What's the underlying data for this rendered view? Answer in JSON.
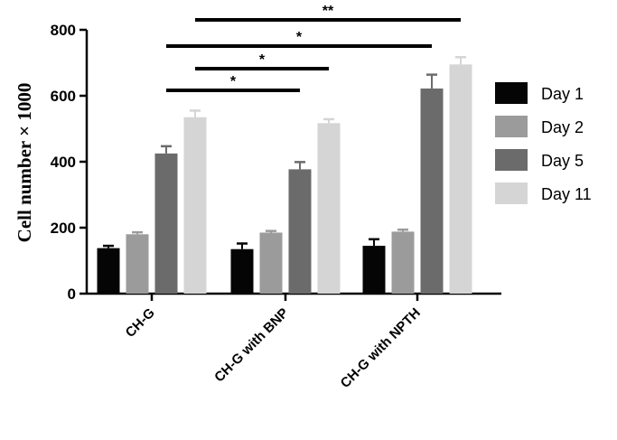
{
  "chart_data": {
    "type": "bar",
    "categories": [
      "CH-G",
      "CH-G with BNP",
      "CH-G with NPTH"
    ],
    "series": [
      {
        "name": "Day 1",
        "values": [
          138,
          135,
          145
        ],
        "errors": [
          7,
          17,
          20
        ],
        "color": "#050505"
      },
      {
        "name": "Day 2",
        "values": [
          180,
          185,
          188
        ],
        "errors": [
          6,
          5,
          6
        ],
        "color": "#9b9b9b"
      },
      {
        "name": "Day 5",
        "values": [
          425,
          377,
          622
        ],
        "errors": [
          22,
          22,
          42
        ],
        "color": "#6b6b6b"
      },
      {
        "name": "Day 11",
        "values": [
          535,
          517,
          695
        ],
        "errors": [
          20,
          12,
          22
        ],
        "color": "#d5d5d5"
      }
    ],
    "ylabel": "Cell number × 1000",
    "xlabel": "",
    "ylim": [
      0,
      800
    ],
    "yticks": [
      0,
      200,
      400,
      600,
      800
    ],
    "legend_position": "right",
    "grid": false,
    "significance": [
      {
        "label": "*",
        "from_category": 0,
        "from_series": 2,
        "to_category": 1,
        "to_series": 2
      },
      {
        "label": "*",
        "from_category": 0,
        "from_series": 3,
        "to_category": 1,
        "to_series": 3
      },
      {
        "label": "*",
        "from_category": 0,
        "from_series": 2,
        "to_category": 2,
        "to_series": 2
      },
      {
        "label": "**",
        "from_category": 0,
        "from_series": 3,
        "to_category": 2,
        "to_series": 3
      }
    ]
  }
}
